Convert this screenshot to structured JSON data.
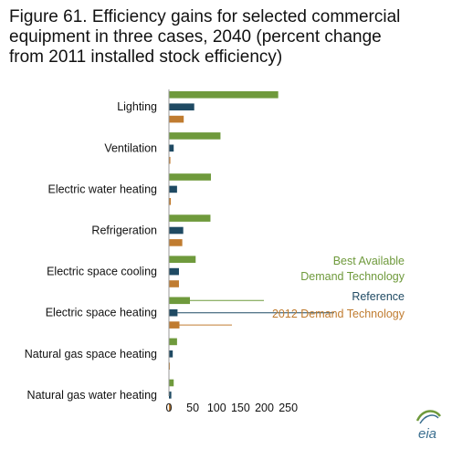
{
  "title_lines": [
    "Figure 61. Efficiency gains for selected commercial",
    "equipment in three cases, 2040 (percent change",
    "from 2011 installed stock efficiency)"
  ],
  "logo_text": "eia",
  "chart_data": {
    "type": "bar",
    "orientation": "horizontal",
    "title": "Figure 61. Efficiency gains for selected commercial equipment in three cases, 2040 (percent change from 2011 installed stock efficiency)",
    "categories": [
      "Lighting",
      "Ventilation",
      "Electric water heating",
      "Refrigeration",
      "Electric space cooling",
      "Electric space heating",
      "Natural gas space heating",
      "Natural gas water  heating"
    ],
    "series": [
      {
        "name": "Best Available Demand Technology",
        "color": "#6f9a3c",
        "values": [
          229,
          108,
          88,
          87,
          56,
          44,
          17,
          10
        ]
      },
      {
        "name": "Reference",
        "color": "#1f4a63",
        "values": [
          53,
          10,
          17,
          30,
          21,
          18,
          8,
          5
        ]
      },
      {
        "name": "2012 Demand Technology",
        "color": "#c07c30",
        "values": [
          31,
          3,
          4,
          28,
          21,
          22,
          2,
          4
        ]
      }
    ],
    "legend": {
      "best_line1": "Best Available",
      "best_line2": "Demand Technology",
      "reference": "Reference",
      "demand2012": "2012 Demand Technology"
    },
    "xlim": [
      0,
      250
    ],
    "xticks": [
      0,
      50,
      100,
      150,
      200,
      250
    ],
    "xlabel": "",
    "ylabel": "",
    "grid": false,
    "legend_placement": "inline-right"
  }
}
